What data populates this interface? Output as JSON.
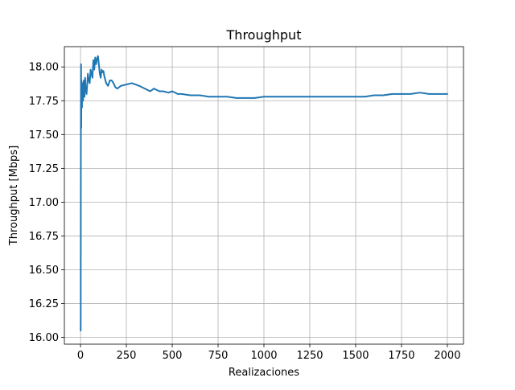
{
  "chart_data": {
    "type": "line",
    "title": "Throughput",
    "xlabel": "Realizaciones",
    "ylabel": "Throughput [Mbps]",
    "xlim": [
      -88,
      2088
    ],
    "ylim": [
      15.95,
      18.15
    ],
    "grid": true,
    "xticks": [
      0,
      250,
      500,
      750,
      1000,
      1250,
      1500,
      1750,
      2000
    ],
    "xtick_labels": [
      "0",
      "250",
      "500",
      "750",
      "1000",
      "1250",
      "1500",
      "1750",
      "2000"
    ],
    "yticks": [
      16.0,
      16.25,
      16.5,
      16.75,
      17.0,
      17.25,
      17.5,
      17.75,
      18.0
    ],
    "ytick_labels": [
      "16.00",
      "16.25",
      "16.50",
      "16.75",
      "17.00",
      "17.25",
      "17.50",
      "17.75",
      "18.00"
    ],
    "series": [
      {
        "color": "#1f77b4",
        "x": [
          1,
          2,
          3,
          4,
          5,
          6,
          7,
          8,
          9,
          10,
          12,
          14,
          16,
          18,
          20,
          22,
          25,
          28,
          30,
          33,
          36,
          40,
          45,
          50,
          55,
          60,
          65,
          70,
          75,
          80,
          85,
          90,
          95,
          100,
          105,
          110,
          115,
          120,
          125,
          130,
          140,
          150,
          160,
          170,
          180,
          190,
          200,
          220,
          250,
          280,
          300,
          320,
          350,
          380,
          400,
          430,
          450,
          480,
          500,
          530,
          550,
          600,
          650,
          700,
          750,
          800,
          850,
          900,
          950,
          1000,
          1050,
          1100,
          1150,
          1200,
          1250,
          1300,
          1350,
          1400,
          1450,
          1500,
          1550,
          1600,
          1650,
          1700,
          1750,
          1800,
          1850,
          1900,
          1950,
          2000
        ],
        "y": [
          16.05,
          17.6,
          18.02,
          17.55,
          17.9,
          17.75,
          17.85,
          17.7,
          17.82,
          17.88,
          17.8,
          17.75,
          17.87,
          17.9,
          17.82,
          17.78,
          17.92,
          17.82,
          17.85,
          17.8,
          17.86,
          17.95,
          17.9,
          17.88,
          17.98,
          17.95,
          17.92,
          18.05,
          17.98,
          18.07,
          18.02,
          18.06,
          18.08,
          18.02,
          17.95,
          17.92,
          17.98,
          17.96,
          17.97,
          17.93,
          17.88,
          17.86,
          17.9,
          17.9,
          17.88,
          17.85,
          17.84,
          17.86,
          17.87,
          17.88,
          17.87,
          17.86,
          17.84,
          17.82,
          17.84,
          17.82,
          17.82,
          17.81,
          17.82,
          17.8,
          17.8,
          17.79,
          17.79,
          17.78,
          17.78,
          17.78,
          17.77,
          17.77,
          17.77,
          17.78,
          17.78,
          17.78,
          17.78,
          17.78,
          17.78,
          17.78,
          17.78,
          17.78,
          17.78,
          17.78,
          17.78,
          17.79,
          17.79,
          17.8,
          17.8,
          17.8,
          17.81,
          17.8,
          17.8,
          17.8
        ]
      }
    ]
  }
}
